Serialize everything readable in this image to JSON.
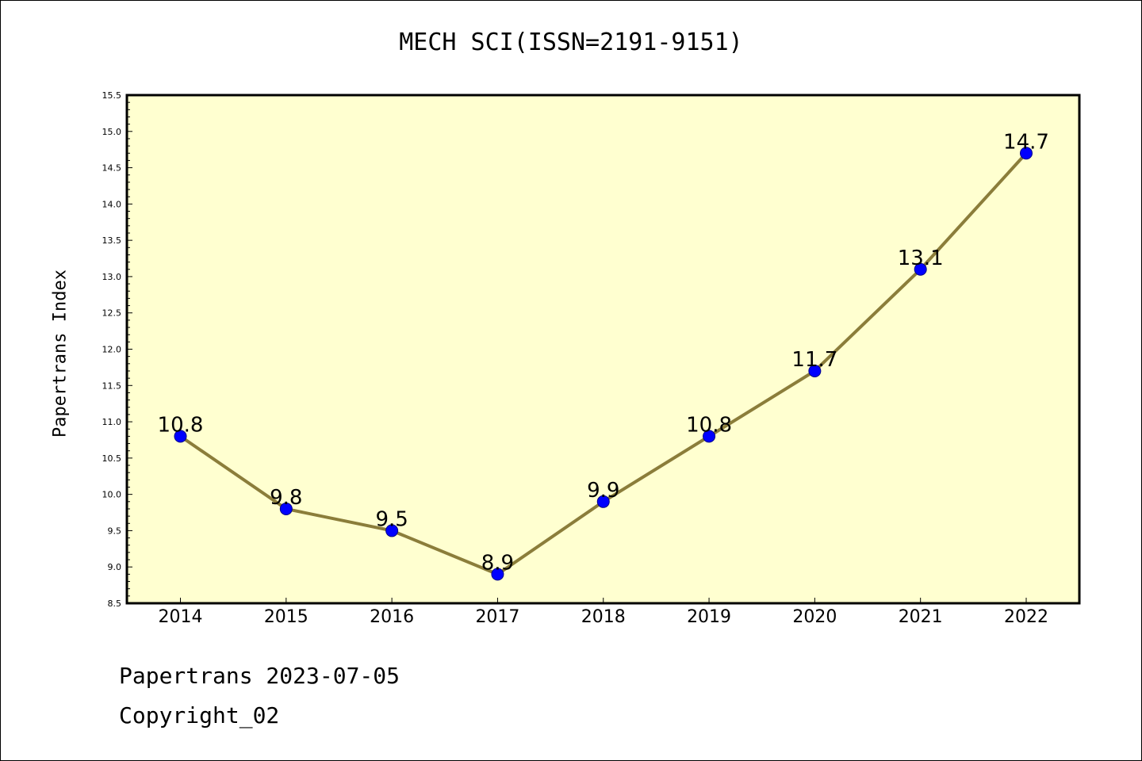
{
  "chart_data": {
    "type": "line",
    "title": "MECH SCI(ISSN=2191-9151)",
    "xlabel": "",
    "ylabel": "Papertrans Index",
    "categories": [
      "2014",
      "2015",
      "2016",
      "2017",
      "2018",
      "2019",
      "2020",
      "2021",
      "2022"
    ],
    "series": [
      {
        "values": [
          10.8,
          9.8,
          9.5,
          8.9,
          9.9,
          10.8,
          11.7,
          13.1,
          14.7
        ],
        "data_labels": [
          "10.8",
          "9.8",
          "9.5",
          "8.9",
          "9.9",
          "10.8",
          "11.7",
          "13.1",
          "14.7"
        ]
      }
    ],
    "ylim": [
      8.5,
      15.5
    ],
    "yticks": [
      "8.5",
      "9.0",
      "9.5",
      "10.0",
      "10.5",
      "11.0",
      "11.5",
      "12.0",
      "12.5",
      "13.0",
      "13.5",
      "14.0",
      "14.5",
      "15.0",
      "15.5"
    ],
    "grid": false,
    "legend": "none",
    "colors": {
      "plot_background": "#ffffd0",
      "line": "#8b7d3a",
      "marker": "#0000ff"
    }
  },
  "footer": {
    "line1": "Papertrans 2023-07-05",
    "line2": "Copyright_02"
  }
}
